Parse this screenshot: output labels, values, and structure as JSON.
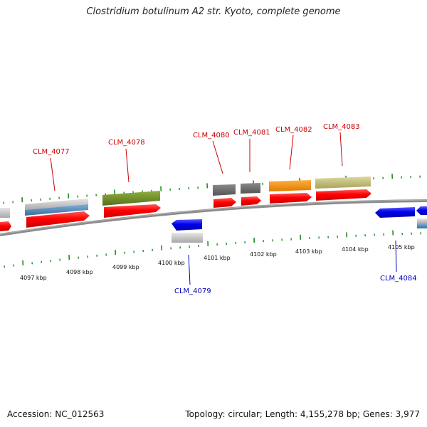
{
  "title": "Clostridium botulinum A2 str. Kyoto, complete genome",
  "accession": "Accession: NC_012563",
  "summary": "Topology: circular; Length: 4,155,278 bp; Genes: 3,977",
  "ticks": [
    "4097 kbp",
    "4098 kbp",
    "4099 kbp",
    "4100 kbp",
    "4101 kbp",
    "4102 kbp",
    "4103 kbp",
    "4104 kbp",
    "4105 kbp"
  ],
  "genes": [
    {
      "label": "CLM_4077",
      "strand": "+",
      "color": "#cc0000"
    },
    {
      "label": "CLM_4078",
      "strand": "+",
      "color": "#cc0000"
    },
    {
      "label": "CLM_4079",
      "strand": "-",
      "color": "#0000bb"
    },
    {
      "label": "CLM_4080",
      "strand": "+",
      "color": "#cc0000"
    },
    {
      "label": "CLM_4081",
      "strand": "+",
      "color": "#cc0000"
    },
    {
      "label": "CLM_4082",
      "strand": "+",
      "color": "#cc0000"
    },
    {
      "label": "CLM_4083",
      "strand": "+",
      "color": "#cc0000"
    },
    {
      "label": "CLM_4084",
      "strand": "-",
      "color": "#0000bb"
    }
  ],
  "colors": {
    "forward_cds": "#ff0000",
    "reverse_cds": "#0000ee",
    "backbone": "#8a8a8a",
    "tick": "#228b22",
    "cog_grey": "#b8b8b8",
    "cog_blue": "#4682b4",
    "cog_olive": "#6b8e23",
    "cog_dark_grey": "#696969",
    "cog_orange": "#ff8c00",
    "cog_khaki": "#bdb76b"
  }
}
